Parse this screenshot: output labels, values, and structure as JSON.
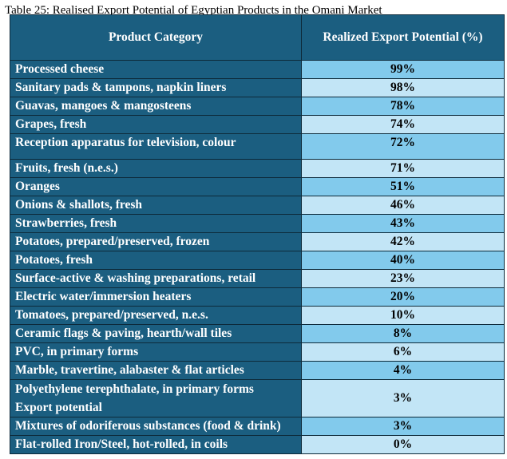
{
  "caption": "Table 25: Realised Export Potential of Egyptian Products in the Omani Market",
  "headers": [
    "Product Category",
    "Realized Export Potential (%)"
  ],
  "rows": [
    {
      "category": "Processed cheese",
      "value": "99%"
    },
    {
      "category": "Sanitary pads & tampons, napkin liners",
      "value": "98%"
    },
    {
      "category": "Guavas, mangoes & mangosteens",
      "value": "78%"
    },
    {
      "category": "Grapes, fresh",
      "value": "74%"
    },
    {
      "category": "Reception apparatus for television, colour",
      "value": "72%"
    },
    {
      "category": "Fruits, fresh (n.e.s.)",
      "value": "71%"
    },
    {
      "category": "Oranges",
      "value": "51%"
    },
    {
      "category": "Onions & shallots, fresh",
      "value": "46%"
    },
    {
      "category": "Strawberries, fresh",
      "value": "43%"
    },
    {
      "category": "Potatoes, prepared/preserved, frozen",
      "value": "42%"
    },
    {
      "category": "Potatoes, fresh",
      "value": "40%"
    },
    {
      "category": "Surface-active & washing preparations, retail",
      "value": "23%"
    },
    {
      "category": "Electric water/immersion heaters",
      "value": "20%"
    },
    {
      "category": "Tomatoes, prepared/preserved, n.e.s.",
      "value": "10%"
    },
    {
      "category": "Ceramic flags & paving, hearth/wall tiles",
      "value": "8%"
    },
    {
      "category": "PVC, in primary forms",
      "value": "6%"
    },
    {
      "category": "Marble, travertine, alabaster & flat articles",
      "value": "4%"
    },
    {
      "category": "Polyethylene terephthalate, in primary forms",
      "category_line2": "Export potential",
      "value": "3%"
    },
    {
      "category": "Mixtures of odoriferous substances (food & drink)",
      "value": "3%"
    },
    {
      "category": "Flat-rolled Iron/Steel, hot-rolled, in coils",
      "value": "0%"
    }
  ],
  "colors": {
    "header": "#1b5e80",
    "mid": "#82caec",
    "light": "#c2e5f6"
  }
}
